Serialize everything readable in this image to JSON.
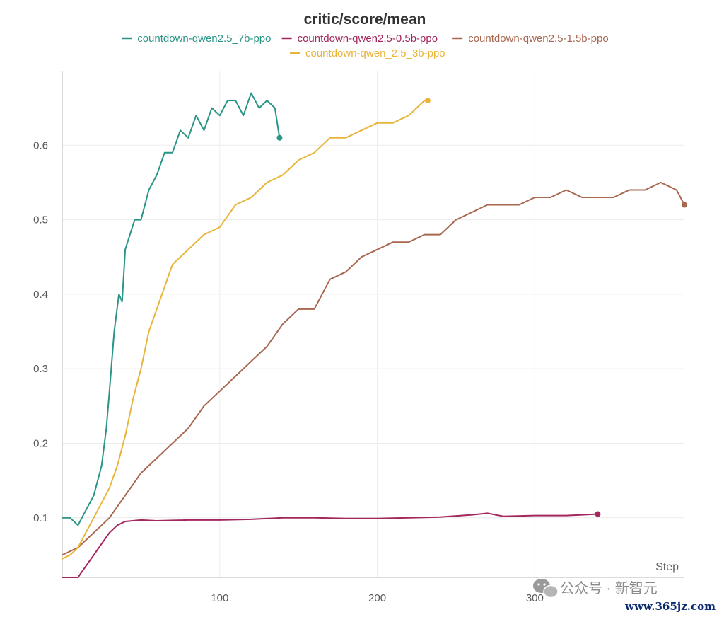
{
  "chart_data": {
    "type": "line",
    "title": "critic/score/mean",
    "xlabel": "Step",
    "ylabel": "",
    "xlim": [
      0,
      395
    ],
    "ylim": [
      0.02,
      0.7
    ],
    "x_ticks": [
      100,
      200,
      300
    ],
    "y_ticks": [
      0.1,
      0.2,
      0.3,
      0.4,
      0.5,
      0.6
    ],
    "grid": true,
    "legend_position": "top",
    "series": [
      {
        "name": "countdown-qwen2.5_7b-ppo",
        "color": "#2a9486",
        "x": [
          0,
          5,
          10,
          15,
          20,
          25,
          28,
          30,
          33,
          36,
          38,
          40,
          43,
          46,
          50,
          55,
          60,
          65,
          70,
          75,
          80,
          85,
          90,
          95,
          100,
          105,
          110,
          115,
          120,
          125,
          130,
          135,
          138
        ],
        "y": [
          0.1,
          0.1,
          0.09,
          0.11,
          0.13,
          0.17,
          0.22,
          0.27,
          0.35,
          0.4,
          0.39,
          0.46,
          0.48,
          0.5,
          0.5,
          0.54,
          0.56,
          0.59,
          0.59,
          0.62,
          0.61,
          0.64,
          0.62,
          0.65,
          0.64,
          0.66,
          0.66,
          0.64,
          0.67,
          0.65,
          0.66,
          0.65,
          0.61
        ]
      },
      {
        "name": "countdown-qwen2.5-0.5b-ppo",
        "color": "#a3265e",
        "x": [
          0,
          10,
          15,
          20,
          25,
          30,
          35,
          40,
          50,
          60,
          80,
          100,
          120,
          140,
          160,
          180,
          200,
          220,
          240,
          260,
          270,
          280,
          300,
          320,
          330,
          340
        ],
        "y": [
          0.02,
          0.02,
          0.035,
          0.05,
          0.065,
          0.08,
          0.09,
          0.095,
          0.097,
          0.096,
          0.097,
          0.097,
          0.098,
          0.1,
          0.1,
          0.099,
          0.099,
          0.1,
          0.101,
          0.104,
          0.106,
          0.102,
          0.103,
          0.103,
          0.104,
          0.105
        ]
      },
      {
        "name": "countdown-qwen2.5-1.5b-ppo",
        "color": "#a8674f",
        "x": [
          0,
          10,
          20,
          30,
          40,
          50,
          60,
          70,
          80,
          90,
          100,
          110,
          120,
          130,
          140,
          150,
          160,
          170,
          180,
          190,
          200,
          210,
          220,
          230,
          240,
          250,
          260,
          270,
          280,
          290,
          300,
          310,
          320,
          330,
          340,
          350,
          360,
          370,
          380,
          390,
          395
        ],
        "y": [
          0.05,
          0.06,
          0.08,
          0.1,
          0.13,
          0.16,
          0.18,
          0.2,
          0.22,
          0.25,
          0.27,
          0.29,
          0.31,
          0.33,
          0.36,
          0.38,
          0.38,
          0.42,
          0.43,
          0.45,
          0.46,
          0.47,
          0.47,
          0.48,
          0.48,
          0.5,
          0.51,
          0.52,
          0.52,
          0.52,
          0.53,
          0.53,
          0.54,
          0.53,
          0.53,
          0.53,
          0.54,
          0.54,
          0.55,
          0.54,
          0.52
        ]
      },
      {
        "name": "countdown-qwen_2.5_3b-ppo",
        "color": "#e8b43a",
        "x": [
          0,
          5,
          10,
          15,
          20,
          25,
          30,
          35,
          40,
          45,
          50,
          55,
          60,
          65,
          70,
          75,
          80,
          90,
          100,
          110,
          120,
          130,
          140,
          150,
          160,
          170,
          180,
          190,
          200,
          210,
          220,
          230,
          232
        ],
        "y": [
          0.045,
          0.05,
          0.06,
          0.08,
          0.1,
          0.12,
          0.14,
          0.17,
          0.21,
          0.26,
          0.3,
          0.35,
          0.38,
          0.41,
          0.44,
          0.45,
          0.46,
          0.48,
          0.49,
          0.52,
          0.53,
          0.55,
          0.56,
          0.58,
          0.59,
          0.61,
          0.61,
          0.62,
          0.63,
          0.63,
          0.64,
          0.66,
          0.66
        ]
      }
    ]
  },
  "watermark": {
    "text": "公众号 · 新智元",
    "site": "www.365jz.com"
  }
}
